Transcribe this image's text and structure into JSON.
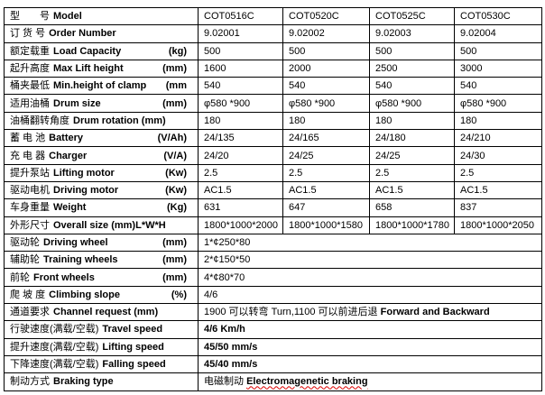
{
  "models": [
    "COT0516C",
    "COT0520C",
    "COT0525C",
    "COT0530C"
  ],
  "spec_rows": [
    {
      "cn": "型　　号",
      "en": "Model",
      "unit": "",
      "values": [
        "COT0516C",
        "COT0520C",
        "COT0525C",
        "COT0530C"
      ]
    },
    {
      "cn": "订 货 号",
      "en": "Order Number",
      "unit": "",
      "values": [
        "9.02001",
        "9.02002",
        "9.02003",
        "9.02004"
      ]
    },
    {
      "cn": "额定载重",
      "en": "Load Capacity",
      "unit": "(kg)",
      "values": [
        "500",
        "500",
        "500",
        "500"
      ]
    },
    {
      "cn": "起升高度",
      "en": "Max Lift height",
      "unit": "(mm)",
      "values": [
        "1600",
        "2000",
        "2500",
        "3000"
      ]
    },
    {
      "cn": "桶夹最低",
      "en": "Min.height of clamp",
      "unit": "(mm",
      "values": [
        "540",
        "540",
        "540",
        "540"
      ]
    },
    {
      "cn": "适用油桶",
      "en": "Drum size",
      "unit": "(mm)",
      "values": [
        "φ580 *900",
        "φ580 *900",
        "φ580 *900",
        "φ580 *900"
      ]
    },
    {
      "cn": "油桶翻转角度",
      "en": "Drum rotation (mm)",
      "unit": "",
      "values": [
        "180",
        "180",
        "180",
        "180"
      ]
    },
    {
      "cn": "蓄 电 池",
      "en": "Battery",
      "unit": "(V/Ah)",
      "values": [
        "24/135",
        "24/165",
        "24/180",
        "24/210"
      ]
    },
    {
      "cn": "充 电 器",
      "en": "Charger",
      "unit": "(V/A)",
      "values": [
        "24/20",
        "24/25",
        "24/25",
        "24/30"
      ]
    },
    {
      "cn": "提升泵站",
      "en": "Lifting motor",
      "unit": "(Kw)",
      "values": [
        "2.5",
        "2.5",
        "2.5",
        "2.5"
      ]
    },
    {
      "cn": "驱动电机",
      "en": "Driving motor",
      "unit": "(Kw)",
      "values": [
        "AC1.5",
        "AC1.5",
        "AC1.5",
        "AC1.5"
      ]
    },
    {
      "cn": "车身重量",
      "en": "Weight",
      "unit": "(Kg)",
      "values": [
        "631",
        "647",
        "658",
        "837"
      ]
    },
    {
      "cn": "外形尺寸",
      "en": "Overall size (mm)L*W*H",
      "unit": "",
      "values": [
        "1800*1000*2000",
        "1800*1000*1580",
        "1800*1000*1780",
        "1800*1000*2050"
      ]
    }
  ],
  "common_rows": [
    {
      "cn": "驱动轮",
      "en": "Driving wheel",
      "unit": "(mm)",
      "value": "1*¢250*80",
      "bold": false
    },
    {
      "cn": "辅助轮",
      "en": "Training wheels",
      "unit": "(mm)",
      "value": "2*¢150*50",
      "bold": false
    },
    {
      "cn": "前轮",
      "en": "Front wheels",
      "unit": "(mm)",
      "value": "4*¢80*70",
      "bold": false
    },
    {
      "cn": "爬 坡 度",
      "en": "Climbing slope",
      "unit": "(%)",
      "value": "4/6",
      "bold": false
    },
    {
      "cn": "通道要求",
      "en": "Channel request (mm)",
      "unit": "",
      "value": "1900 可以转弯 Turn,1100 可以前进后退",
      "value_bold": "Forward and Backward",
      "bold": false
    },
    {
      "cn": "行驶速度(满载/空载)",
      "en": "Travel speed",
      "unit": "",
      "value": "4/6 Km/h",
      "bold": true
    },
    {
      "cn": "提升速度(满载/空载)",
      "en": "Lifting speed",
      "unit": "",
      "value": "45/50 mm/s",
      "bold": true
    },
    {
      "cn": "下降速度(满载/空载)",
      "en": "Falling speed",
      "unit": "",
      "value": "45/40 mm/s",
      "bold": true
    },
    {
      "cn": "制动方式",
      "en": "Braking type",
      "unit": "",
      "value": "电磁制动",
      "value_bold": "Electromagenetic braking",
      "bold": true
    }
  ]
}
